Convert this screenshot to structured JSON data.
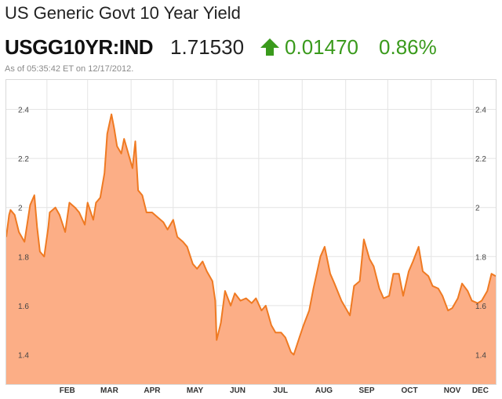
{
  "header": {
    "title": "US Generic Govt 10 Year Yield",
    "ticker": "USGG10YR:IND",
    "price": "1.71530",
    "change": "0.01470",
    "percent": "0.86%",
    "timestamp": "As of 05:35:42 ET on 12/17/2012.",
    "direction_icon": "up-arrow-icon",
    "up_color": "#3a9a1c"
  },
  "chart_data": {
    "type": "area",
    "title": "",
    "xlabel": "",
    "ylabel": "",
    "x_ticks": [
      "FEB",
      "MAR",
      "APR",
      "MAY",
      "JUN",
      "JUL",
      "AUG",
      "SEP",
      "OCT",
      "NOV",
      "DEC"
    ],
    "y_ticks": [
      "1.4",
      "1.6",
      "1.8",
      "2",
      "2.2",
      "2.4"
    ],
    "ylim": [
      1.28,
      2.52
    ],
    "xlim": [
      "2012-01-03",
      "2012-12-17"
    ],
    "grid": true,
    "fill_color": "#fcae86",
    "line_color": "#ef7a22",
    "series": [
      {
        "x": [
          "2012-01-03",
          "2012-01-05",
          "2012-01-06",
          "2012-01-09",
          "2012-01-12",
          "2012-01-16",
          "2012-01-20",
          "2012-01-23",
          "2012-01-25",
          "2012-01-27",
          "2012-01-30",
          "2012-02-02",
          "2012-02-03",
          "2012-02-07",
          "2012-02-10",
          "2012-02-14",
          "2012-02-17",
          "2012-02-21",
          "2012-02-24",
          "2012-02-28",
          "2012-03-01",
          "2012-03-05",
          "2012-03-07",
          "2012-03-10",
          "2012-03-13",
          "2012-03-15",
          "2012-03-18",
          "2012-03-20",
          "2012-03-22",
          "2012-03-25",
          "2012-03-27",
          "2012-03-30",
          "2012-04-02",
          "2012-04-04",
          "2012-04-06",
          "2012-04-09",
          "2012-04-12",
          "2012-04-16",
          "2012-04-20",
          "2012-04-24",
          "2012-04-27",
          "2012-05-01",
          "2012-05-04",
          "2012-05-08",
          "2012-05-11",
          "2012-05-15",
          "2012-05-18",
          "2012-05-22",
          "2012-05-25",
          "2012-05-29",
          "2012-05-31",
          "2012-06-01",
          "2012-06-04",
          "2012-06-07",
          "2012-06-11",
          "2012-06-14",
          "2012-06-18",
          "2012-06-22",
          "2012-06-26",
          "2012-06-29",
          "2012-07-03",
          "2012-07-06",
          "2012-07-10",
          "2012-07-13",
          "2012-07-17",
          "2012-07-20",
          "2012-07-24",
          "2012-07-26",
          "2012-07-30",
          "2012-08-02",
          "2012-08-06",
          "2012-08-09",
          "2012-08-14",
          "2012-08-17",
          "2012-08-21",
          "2012-08-24",
          "2012-08-29",
          "2012-09-04",
          "2012-09-07",
          "2012-09-11",
          "2012-09-14",
          "2012-09-18",
          "2012-09-21",
          "2012-09-25",
          "2012-09-28",
          "2012-10-02",
          "2012-10-05",
          "2012-10-09",
          "2012-10-12",
          "2012-10-16",
          "2012-10-19",
          "2012-10-23",
          "2012-10-26",
          "2012-10-30",
          "2012-11-02",
          "2012-11-06",
          "2012-11-09",
          "2012-11-13",
          "2012-11-16",
          "2012-11-20",
          "2012-11-23",
          "2012-11-27",
          "2012-11-30",
          "2012-12-04",
          "2012-12-07",
          "2012-12-11",
          "2012-12-14",
          "2012-12-17"
        ],
        "values": [
          1.88,
          1.97,
          1.99,
          1.97,
          1.9,
          1.86,
          2.01,
          2.05,
          1.92,
          1.82,
          1.8,
          1.92,
          1.98,
          2.0,
          1.97,
          1.9,
          2.02,
          2.0,
          1.98,
          1.93,
          2.02,
          1.95,
          2.02,
          2.04,
          2.14,
          2.3,
          2.38,
          2.32,
          2.25,
          2.22,
          2.28,
          2.22,
          2.16,
          2.27,
          2.07,
          2.05,
          1.98,
          1.98,
          1.96,
          1.94,
          1.91,
          1.95,
          1.88,
          1.86,
          1.84,
          1.77,
          1.75,
          1.78,
          1.74,
          1.7,
          1.62,
          1.46,
          1.53,
          1.66,
          1.6,
          1.65,
          1.62,
          1.63,
          1.61,
          1.63,
          1.58,
          1.6,
          1.52,
          1.49,
          1.49,
          1.47,
          1.41,
          1.4,
          1.47,
          1.52,
          1.58,
          1.67,
          1.8,
          1.84,
          1.73,
          1.69,
          1.62,
          1.56,
          1.68,
          1.7,
          1.87,
          1.79,
          1.76,
          1.67,
          1.63,
          1.64,
          1.73,
          1.73,
          1.64,
          1.74,
          1.78,
          1.84,
          1.74,
          1.72,
          1.68,
          1.67,
          1.64,
          1.58,
          1.59,
          1.63,
          1.69,
          1.66,
          1.62,
          1.61,
          1.62,
          1.66,
          1.73,
          1.72
        ]
      }
    ]
  }
}
